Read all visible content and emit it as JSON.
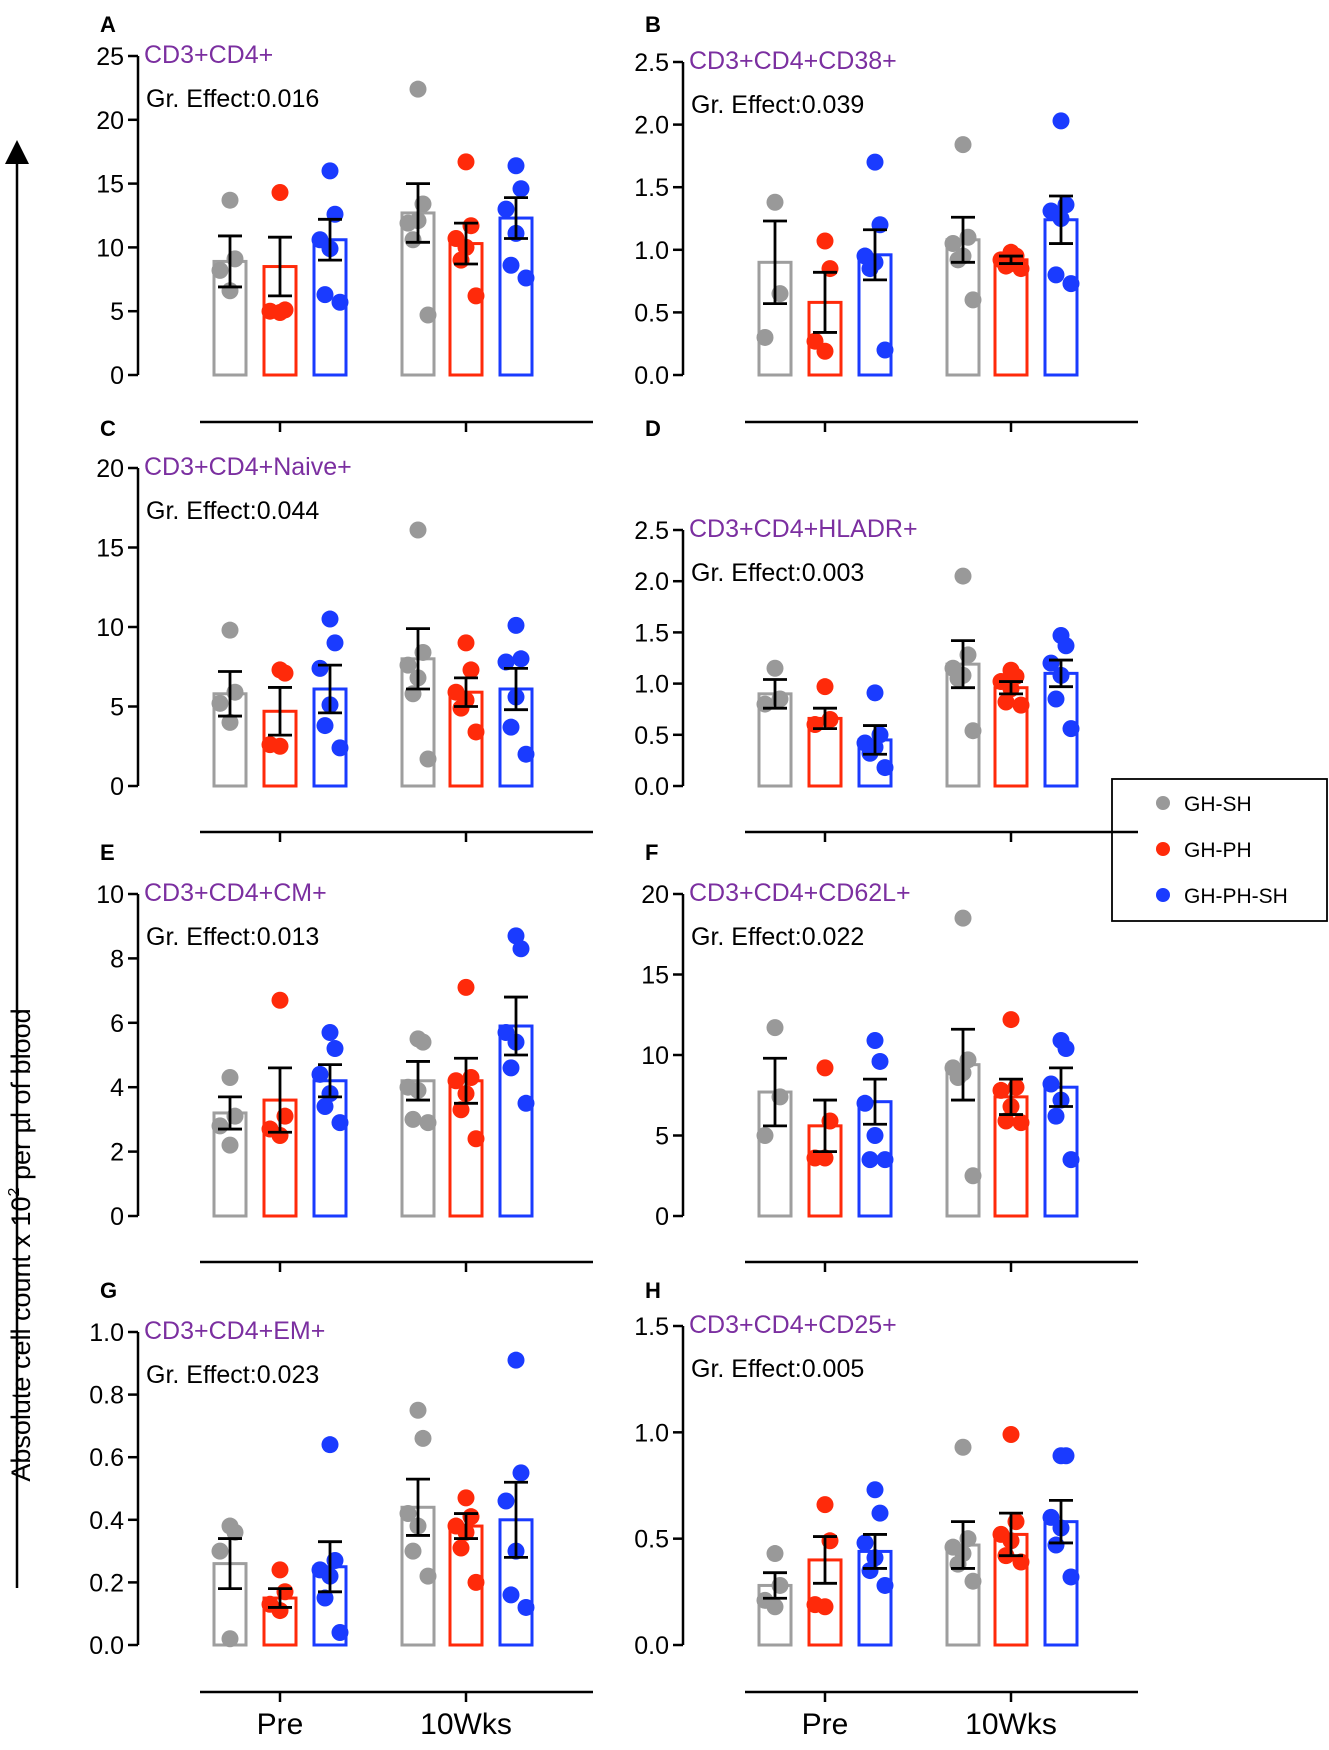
{
  "figure": {
    "y_axis_label": "Absolute cell count x 10",
    "y_axis_label_sup": "2",
    "y_axis_label_tail": " per µl of blood"
  },
  "legend": {
    "items": [
      {
        "label": "GH-SH",
        "color": "#999999"
      },
      {
        "label": "GH-PH",
        "color": "#ff2a0a"
      },
      {
        "label": "GH-PH-SH",
        "color": "#1a3bff"
      }
    ]
  },
  "chart_data": [
    {
      "type": "bar",
      "letter": "A",
      "title": "CD3+CD4+",
      "effect": "Gr. Effect:0.016",
      "ylim": [
        0,
        25
      ],
      "yticks": [
        0,
        5,
        10,
        15,
        20,
        25
      ],
      "categories": [
        "Pre",
        "10Wks"
      ],
      "series": [
        {
          "name": "GH-SH",
          "values": [
            8.9,
            12.7
          ],
          "sem": [
            2.0,
            2.3
          ],
          "points": [
            [
              13.7,
              9.1,
              8.2,
              6.6
            ],
            [
              22.4,
              13.4,
              11.9,
              12.1,
              10.6,
              4.7
            ]
          ]
        },
        {
          "name": "GH-PH",
          "values": [
            8.5,
            10.3
          ],
          "sem": [
            2.3,
            1.6
          ],
          "points": [
            [
              14.3,
              5.1,
              5.0,
              4.9
            ],
            [
              16.7,
              11.7,
              10.7,
              10.0,
              9.0,
              6.2
            ]
          ]
        },
        {
          "name": "GH-PH-SH",
          "values": [
            10.6,
            12.3
          ],
          "sem": [
            1.6,
            1.6
          ],
          "points": [
            [
              16.0,
              12.6,
              10.6,
              9.9,
              6.3,
              5.7
            ],
            [
              16.4,
              14.6,
              13.0,
              11.1,
              8.6,
              7.6
            ]
          ]
        }
      ]
    },
    {
      "type": "bar",
      "letter": "B",
      "title": "CD3+CD4+CD38+",
      "effect": "Gr. Effect:0.039",
      "ylim": [
        0,
        2.5
      ],
      "yticks": [
        0.0,
        0.5,
        1.0,
        1.5,
        2.0,
        2.5
      ],
      "categories": [
        "Pre",
        "10Wks"
      ],
      "series": [
        {
          "name": "GH-SH",
          "values": [
            0.9,
            1.08
          ],
          "sem": [
            0.33,
            0.18
          ],
          "points": [
            [
              1.38,
              0.65,
              0.3
            ],
            [
              1.84,
              1.1,
              1.05,
              0.95,
              0.92,
              0.6
            ]
          ]
        },
        {
          "name": "GH-PH",
          "values": [
            0.58,
            0.92
          ],
          "sem": [
            0.24,
            0.03
          ],
          "points": [
            [
              1.07,
              0.85,
              0.27,
              0.19
            ],
            [
              0.98,
              0.95,
              0.92,
              0.89,
              0.87,
              0.85
            ]
          ]
        },
        {
          "name": "GH-PH-SH",
          "values": [
            0.96,
            1.24
          ],
          "sem": [
            0.2,
            0.19
          ],
          "points": [
            [
              1.7,
              1.2,
              0.95,
              0.9,
              0.85,
              0.2
            ],
            [
              2.03,
              1.36,
              1.31,
              1.25,
              0.8,
              0.73
            ]
          ]
        }
      ]
    },
    {
      "type": "bar",
      "letter": "C",
      "title": "CD3+CD4+Naive+",
      "effect": "Gr. Effect:0.044",
      "ylim": [
        0,
        20
      ],
      "yticks": [
        0,
        5,
        10,
        15,
        20
      ],
      "categories": [
        "Pre",
        "10Wks"
      ],
      "series": [
        {
          "name": "GH-SH",
          "values": [
            5.8,
            8.0
          ],
          "sem": [
            1.4,
            1.9
          ],
          "points": [
            [
              9.8,
              5.9,
              5.2,
              4.0
            ],
            [
              16.1,
              8.4,
              7.6,
              6.8,
              5.8,
              1.7
            ]
          ]
        },
        {
          "name": "GH-PH",
          "values": [
            4.7,
            5.9
          ],
          "sem": [
            1.5,
            0.9
          ],
          "points": [
            [
              7.3,
              7.1,
              2.6,
              2.5
            ],
            [
              9.0,
              7.3,
              5.9,
              5.4,
              4.9,
              3.4
            ]
          ]
        },
        {
          "name": "GH-PH-SH",
          "values": [
            6.1,
            6.1
          ],
          "sem": [
            1.5,
            1.3
          ],
          "points": [
            [
              10.5,
              9.0,
              7.4,
              5.1,
              3.8,
              2.4
            ],
            [
              10.1,
              8.0,
              7.8,
              5.6,
              3.7,
              2.0
            ]
          ]
        }
      ]
    },
    {
      "type": "bar",
      "letter": "D",
      "title": "CD3+CD4+HLADR+",
      "effect": "Gr. Effect:0.003",
      "ylim": [
        0,
        2.5
      ],
      "yticks": [
        0.0,
        0.5,
        1.0,
        1.5,
        2.0,
        2.5
      ],
      "categories": [
        "Pre",
        "10Wks"
      ],
      "series": [
        {
          "name": "GH-SH",
          "values": [
            0.9,
            1.19
          ],
          "sem": [
            0.14,
            0.23
          ],
          "points": [
            [
              1.15,
              0.85,
              0.8
            ],
            [
              2.05,
              1.28,
              1.15,
              1.08,
              1.05,
              0.54
            ]
          ]
        },
        {
          "name": "GH-PH",
          "values": [
            0.66,
            0.96
          ],
          "sem": [
            0.1,
            0.06
          ],
          "points": [
            [
              0.97,
              0.65,
              0.6
            ],
            [
              1.13,
              1.07,
              1.02,
              0.95,
              0.82,
              0.79
            ]
          ]
        },
        {
          "name": "GH-PH-SH",
          "values": [
            0.45,
            1.1
          ],
          "sem": [
            0.14,
            0.13
          ],
          "points": [
            [
              0.91,
              0.5,
              0.42,
              0.38,
              0.32,
              0.18
            ],
            [
              1.47,
              1.37,
              1.2,
              1.08,
              0.85,
              0.56
            ]
          ]
        }
      ]
    },
    {
      "type": "bar",
      "letter": "E",
      "title": "CD3+CD4+CM+",
      "effect": "Gr. Effect:0.013",
      "ylim": [
        0,
        10
      ],
      "yticks": [
        0,
        2,
        4,
        6,
        8,
        10
      ],
      "categories": [
        "Pre",
        "10Wks"
      ],
      "series": [
        {
          "name": "GH-SH",
          "values": [
            3.2,
            4.2
          ],
          "sem": [
            0.5,
            0.6
          ],
          "points": [
            [
              4.3,
              3.1,
              2.8,
              2.2
            ],
            [
              5.5,
              5.4,
              4.0,
              3.9,
              3.0,
              2.9
            ]
          ]
        },
        {
          "name": "GH-PH",
          "values": [
            3.6,
            4.2
          ],
          "sem": [
            1.0,
            0.7
          ],
          "points": [
            [
              6.7,
              3.1,
              2.7,
              2.5
            ],
            [
              7.1,
              4.3,
              4.2,
              3.8,
              3.3,
              2.4
            ]
          ]
        },
        {
          "name": "GH-PH-SH",
          "values": [
            4.2,
            5.9
          ],
          "sem": [
            0.5,
            0.9
          ],
          "points": [
            [
              5.7,
              5.2,
              4.4,
              3.8,
              3.4,
              2.9
            ],
            [
              8.7,
              8.3,
              5.7,
              5.4,
              4.6,
              3.5
            ]
          ]
        }
      ]
    },
    {
      "type": "bar",
      "letter": "F",
      "title": "CD3+CD4+CD62L+",
      "effect": "Gr. Effect:0.022",
      "ylim": [
        0,
        20
      ],
      "yticks": [
        0,
        5,
        10,
        15,
        20
      ],
      "categories": [
        "Pre",
        "10Wks"
      ],
      "series": [
        {
          "name": "GH-SH",
          "values": [
            7.7,
            9.4
          ],
          "sem": [
            2.1,
            2.2
          ],
          "points": [
            [
              11.7,
              7.4,
              5.0
            ],
            [
              18.5,
              9.7,
              9.2,
              8.9,
              8.6,
              2.5
            ]
          ]
        },
        {
          "name": "GH-PH",
          "values": [
            5.6,
            7.4
          ],
          "sem": [
            1.6,
            1.1
          ],
          "points": [
            [
              9.2,
              5.9,
              3.6,
              3.6
            ],
            [
              12.2,
              8.0,
              7.8,
              6.8,
              5.9,
              5.8
            ]
          ]
        },
        {
          "name": "GH-PH-SH",
          "values": [
            7.1,
            8.0
          ],
          "sem": [
            1.4,
            1.2
          ],
          "points": [
            [
              10.9,
              9.6,
              7.0,
              5.0,
              3.5,
              3.5
            ],
            [
              10.9,
              10.4,
              8.2,
              7.2,
              6.2,
              3.5
            ]
          ]
        }
      ]
    },
    {
      "type": "bar",
      "letter": "G",
      "title": "CD3+CD4+EM+",
      "effect": "Gr. Effect:0.023",
      "ylim": [
        0,
        1.0
      ],
      "yticks": [
        0.0,
        0.2,
        0.4,
        0.6,
        0.8,
        1.0
      ],
      "categories": [
        "Pre",
        "10Wks"
      ],
      "series": [
        {
          "name": "GH-SH",
          "values": [
            0.26,
            0.44
          ],
          "sem": [
            0.08,
            0.09
          ],
          "points": [
            [
              0.38,
              0.36,
              0.3,
              0.02
            ],
            [
              0.75,
              0.66,
              0.42,
              0.38,
              0.3,
              0.22
            ]
          ]
        },
        {
          "name": "GH-PH",
          "values": [
            0.15,
            0.38
          ],
          "sem": [
            0.03,
            0.04
          ],
          "points": [
            [
              0.24,
              0.17,
              0.13,
              0.11
            ],
            [
              0.47,
              0.41,
              0.38,
              0.36,
              0.31,
              0.2
            ]
          ]
        },
        {
          "name": "GH-PH-SH",
          "values": [
            0.25,
            0.4
          ],
          "sem": [
            0.08,
            0.12
          ],
          "points": [
            [
              0.64,
              0.27,
              0.24,
              0.22,
              0.15,
              0.04
            ],
            [
              0.91,
              0.55,
              0.46,
              0.3,
              0.16,
              0.12
            ]
          ]
        }
      ]
    },
    {
      "type": "bar",
      "letter": "H",
      "title": "CD3+CD4+CD25+",
      "effect": "Gr. Effect:0.005",
      "ylim": [
        0,
        1.5
      ],
      "yticks": [
        0.0,
        0.5,
        1.0,
        1.5
      ],
      "categories": [
        "Pre",
        "10Wks"
      ],
      "series": [
        {
          "name": "GH-SH",
          "values": [
            0.28,
            0.47
          ],
          "sem": [
            0.06,
            0.11
          ],
          "points": [
            [
              0.43,
              0.28,
              0.21,
              0.18
            ],
            [
              0.93,
              0.5,
              0.46,
              0.43,
              0.38,
              0.3
            ]
          ]
        },
        {
          "name": "GH-PH",
          "values": [
            0.4,
            0.52
          ],
          "sem": [
            0.11,
            0.1
          ],
          "points": [
            [
              0.66,
              0.49,
              0.19,
              0.18
            ],
            [
              0.99,
              0.58,
              0.52,
              0.49,
              0.42,
              0.39
            ]
          ]
        },
        {
          "name": "GH-PH-SH",
          "values": [
            0.44,
            0.58
          ],
          "sem": [
            0.08,
            0.1
          ],
          "points": [
            [
              0.73,
              0.62,
              0.48,
              0.41,
              0.35,
              0.28
            ],
            [
              0.89,
              0.89,
              0.6,
              0.55,
              0.47,
              0.32
            ]
          ]
        }
      ]
    }
  ]
}
